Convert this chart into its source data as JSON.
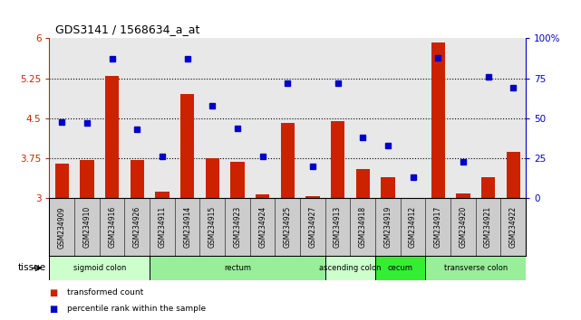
{
  "title": "GDS3141 / 1568634_a_at",
  "samples": [
    "GSM234909",
    "GSM234910",
    "GSM234916",
    "GSM234926",
    "GSM234911",
    "GSM234914",
    "GSM234915",
    "GSM234923",
    "GSM234924",
    "GSM234925",
    "GSM234927",
    "GSM234913",
    "GSM234918",
    "GSM234919",
    "GSM234912",
    "GSM234917",
    "GSM234920",
    "GSM234921",
    "GSM234922"
  ],
  "bar_values": [
    3.65,
    3.72,
    5.3,
    3.72,
    3.12,
    4.95,
    3.75,
    3.68,
    3.08,
    4.42,
    3.05,
    4.45,
    3.55,
    3.4,
    3.01,
    5.92,
    3.1,
    3.4,
    3.88
  ],
  "dot_values": [
    48,
    47,
    87,
    43,
    26,
    87,
    58,
    44,
    26,
    72,
    20,
    72,
    38,
    33,
    13,
    88,
    23,
    76,
    69
  ],
  "ymin": 3.0,
  "ymax": 6.0,
  "yticks": [
    3.0,
    3.75,
    4.5,
    5.25,
    6.0
  ],
  "ytick_labels": [
    "3",
    "3.75",
    "4.5",
    "5.25",
    "6"
  ],
  "right_yticks": [
    0,
    25,
    50,
    75,
    100
  ],
  "right_ytick_labels": [
    "0",
    "25",
    "50",
    "75",
    "100%"
  ],
  "bar_color": "#cc2200",
  "dot_color": "#0000cc",
  "bar_width": 0.55,
  "tissue_groups": [
    {
      "label": "sigmoid colon",
      "start": 0,
      "end": 4,
      "color": "#ccffcc"
    },
    {
      "label": "rectum",
      "start": 4,
      "end": 11,
      "color": "#99ee99"
    },
    {
      "label": "ascending colon",
      "start": 11,
      "end": 13,
      "color": "#ccffcc"
    },
    {
      "label": "cecum",
      "start": 13,
      "end": 15,
      "color": "#33ee33"
    },
    {
      "label": "transverse colon",
      "start": 15,
      "end": 19,
      "color": "#99ee99"
    }
  ],
  "legend_items": [
    {
      "label": "transformed count",
      "color": "#cc2200"
    },
    {
      "label": "percentile rank within the sample",
      "color": "#0000cc"
    }
  ],
  "dotted_lines": [
    3.75,
    4.5,
    5.25
  ],
  "plot_bg": "#e8e8e8",
  "label_box_bg": "#cccccc"
}
